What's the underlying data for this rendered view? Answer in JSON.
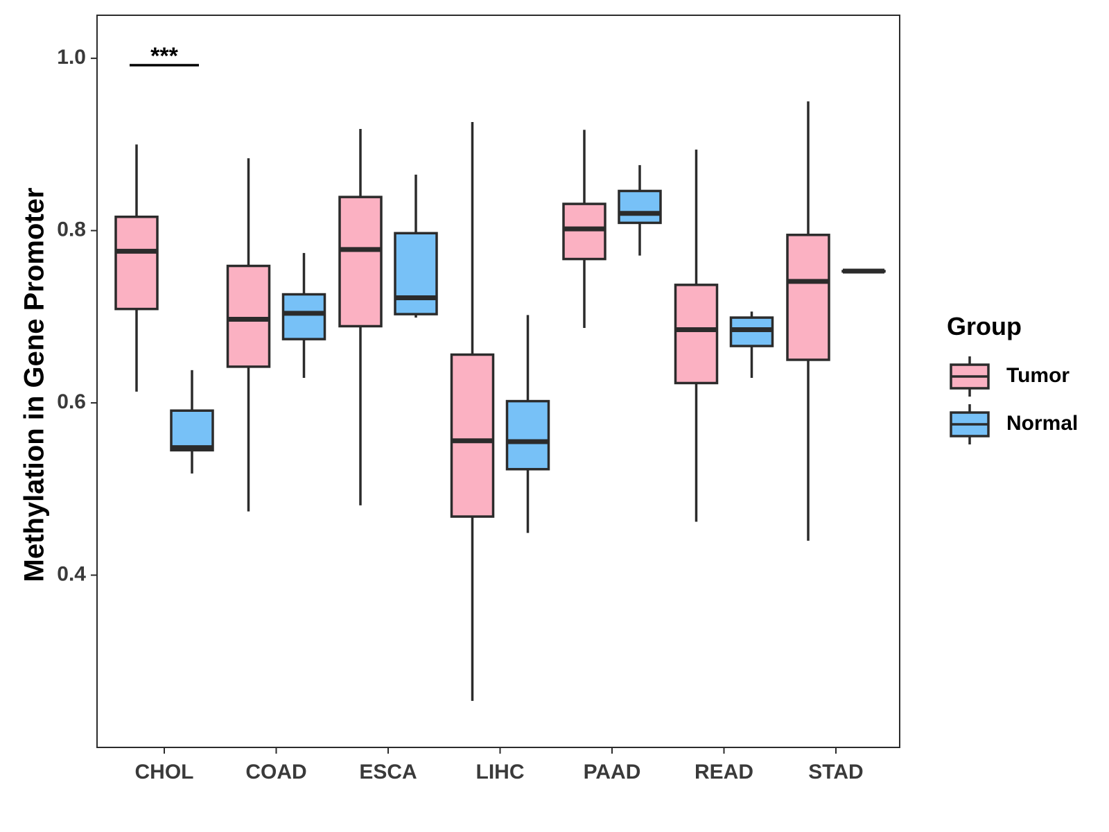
{
  "chart_data": {
    "type": "boxplot",
    "title": "",
    "xlabel": "",
    "ylabel": "Methylation in Gene Promoter",
    "ylim": [
      0.2,
      1.05
    ],
    "yticks": [
      0.4,
      0.6,
      0.8,
      1.0
    ],
    "ytick_labels": [
      "0.4",
      "0.6",
      "0.8",
      "1.0"
    ],
    "categories": [
      "CHOL",
      "COAD",
      "ESCA",
      "LIHC",
      "PAAD",
      "READ",
      "STAD"
    ],
    "legend": {
      "title": "Group",
      "placement": "right",
      "entries": [
        {
          "name": "Tumor",
          "color": "#fbb1c2"
        },
        {
          "name": "Normal",
          "color": "#77c1f7"
        }
      ]
    },
    "series": [
      {
        "name": "Tumor",
        "color": "#fbb1c2",
        "boxes": [
          {
            "category": "CHOL",
            "min": 0.613,
            "q1": 0.709,
            "median": 0.776,
            "q3": 0.816,
            "max": 0.9
          },
          {
            "category": "COAD",
            "min": 0.474,
            "q1": 0.642,
            "median": 0.697,
            "q3": 0.759,
            "max": 0.884
          },
          {
            "category": "ESCA",
            "min": 0.481,
            "q1": 0.689,
            "median": 0.778,
            "q3": 0.839,
            "max": 0.918
          },
          {
            "category": "LIHC",
            "min": 0.254,
            "q1": 0.468,
            "median": 0.556,
            "q3": 0.656,
            "max": 0.926
          },
          {
            "category": "PAAD",
            "min": 0.687,
            "q1": 0.767,
            "median": 0.802,
            "q3": 0.831,
            "max": 0.917
          },
          {
            "category": "READ",
            "min": 0.462,
            "q1": 0.623,
            "median": 0.685,
            "q3": 0.737,
            "max": 0.894
          },
          {
            "category": "STAD",
            "min": 0.44,
            "q1": 0.65,
            "median": 0.741,
            "q3": 0.795,
            "max": 0.95
          }
        ]
      },
      {
        "name": "Normal",
        "color": "#77c1f7",
        "boxes": [
          {
            "category": "CHOL",
            "min": 0.518,
            "q1": 0.545,
            "median": 0.548,
            "q3": 0.591,
            "max": 0.638
          },
          {
            "category": "COAD",
            "min": 0.629,
            "q1": 0.674,
            "median": 0.704,
            "q3": 0.726,
            "max": 0.774
          },
          {
            "category": "ESCA",
            "min": 0.699,
            "q1": 0.703,
            "median": 0.722,
            "q3": 0.797,
            "max": 0.865
          },
          {
            "category": "LIHC",
            "min": 0.449,
            "q1": 0.523,
            "median": 0.555,
            "q3": 0.602,
            "max": 0.702
          },
          {
            "category": "PAAD",
            "min": 0.771,
            "q1": 0.809,
            "median": 0.82,
            "q3": 0.846,
            "max": 0.876
          },
          {
            "category": "READ",
            "min": 0.629,
            "q1": 0.666,
            "median": 0.685,
            "q3": 0.699,
            "max": 0.706
          },
          {
            "category": "STAD",
            "min": 0.753,
            "q1": 0.753,
            "median": 0.753,
            "q3": 0.753,
            "max": 0.753
          }
        ]
      }
    ],
    "annotations": [
      {
        "category": "CHOL",
        "text": "***",
        "y": 0.992
      }
    ]
  }
}
